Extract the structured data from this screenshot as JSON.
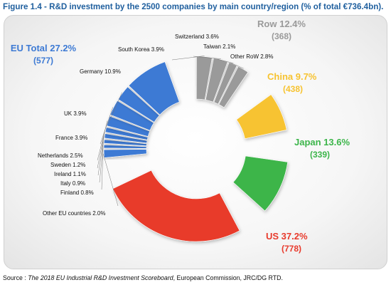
{
  "figure": {
    "title": "Figure 1.4 - R&D investment by the 2500 companies by main country/region (% of total €736.4bn).",
    "source_prefix": "Source : ",
    "source_italic": "The 2018 EU Industrial R&D Investment Scoreboard",
    "source_rest": ",  European Commission, JRC/DG RTD."
  },
  "colors": {
    "eu": "#3d7ad4",
    "row": "#9a9a9a",
    "china": "#f7c330",
    "japan": "#3cb54a",
    "us": "#e83a2c",
    "title": "#1f5f9e"
  },
  "chart_data": {
    "type": "pie",
    "variant": "donut",
    "title": "R&D investment by the 2500 companies by main country/region (% of total €736.4bn)",
    "slices": [
      {
        "label": "US 37.2%",
        "count": "(778)",
        "value": 37.2,
        "group": "us",
        "color": "#e83a2c"
      },
      {
        "label": "Other EU countries 2.0%",
        "value": 2.0,
        "group": "eu",
        "color": "#3d7ad4"
      },
      {
        "label": "Finland 0.8%",
        "value": 0.8,
        "group": "eu",
        "color": "#3d7ad4"
      },
      {
        "label": "Italy 0.9%",
        "value": 0.9,
        "group": "eu",
        "color": "#3d7ad4"
      },
      {
        "label": "Ireland 1.1%",
        "value": 1.1,
        "group": "eu",
        "color": "#3d7ad4"
      },
      {
        "label": "Sweden 1.2%",
        "value": 1.2,
        "group": "eu",
        "color": "#3d7ad4"
      },
      {
        "label": "Netherlands 2.5%",
        "value": 2.5,
        "group": "eu",
        "color": "#3d7ad4"
      },
      {
        "label": "France 3.9%",
        "value": 3.9,
        "group": "eu",
        "color": "#3d7ad4"
      },
      {
        "label": "UK 3.9%",
        "value": 3.9,
        "group": "eu",
        "color": "#3d7ad4"
      },
      {
        "label": "Germany 10.9%",
        "value": 10.9,
        "group": "eu",
        "color": "#3d7ad4"
      },
      {
        "label": "South Korea 3.9%",
        "value": 3.9,
        "group": "row",
        "color": "#9a9a9a"
      },
      {
        "label": "Switzerland 3.6%",
        "value": 3.6,
        "group": "row",
        "color": "#9a9a9a"
      },
      {
        "label": "Taiwan 2.1%",
        "value": 2.1,
        "group": "row",
        "color": "#9a9a9a"
      },
      {
        "label": "Other RoW 2.8%",
        "value": 2.8,
        "group": "row",
        "color": "#9a9a9a"
      },
      {
        "label": "China 9.7%",
        "count": "(438)",
        "value": 9.7,
        "group": "china",
        "color": "#f7c330"
      },
      {
        "label": "Japan 13.6%",
        "count": "(339)",
        "value": 13.6,
        "group": "japan",
        "color": "#3cb54a"
      }
    ],
    "group_labels": [
      {
        "group": "eu",
        "label": "EU Total 27.2%",
        "count": "(577)",
        "color": "#3d7ad4"
      },
      {
        "group": "row",
        "label": "Row 12.4%",
        "count": "(368)",
        "color": "#9a9a9a"
      }
    ]
  }
}
